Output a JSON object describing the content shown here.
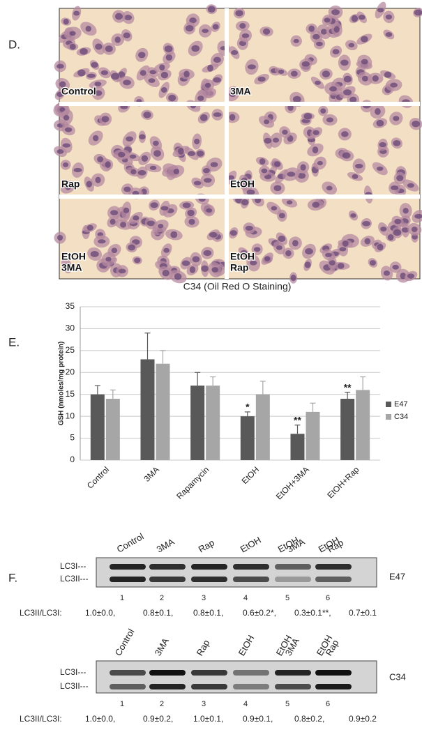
{
  "panel_d": {
    "label": "D.",
    "cells": [
      {
        "label": [
          "Control"
        ]
      },
      {
        "label": [
          "3MA"
        ]
      },
      {
        "label": [
          "Rap"
        ]
      },
      {
        "label": [
          "EtOH"
        ]
      },
      {
        "label": [
          "EtOH",
          "3MA"
        ]
      },
      {
        "label": [
          "EtOH",
          "Rap"
        ]
      }
    ],
    "caption": "C34 (Oil Red O Staining)"
  },
  "chart_data": {
    "type": "bar",
    "panel_label": "E.",
    "ylabel": "GSH (nmoles/mg protein)",
    "categories": [
      "Control",
      "3MA",
      "Rapamycin",
      "EtOH",
      "EtOH+3MA",
      "EtOH+Rap"
    ],
    "series": [
      {
        "name": "E47",
        "color": "#595959",
        "values": [
          15,
          23,
          17,
          10,
          6,
          14
        ],
        "errors": [
          2,
          6,
          3,
          1,
          2,
          1.5
        ]
      },
      {
        "name": "C34",
        "color": "#a6a6a6",
        "values": [
          14,
          22,
          17,
          15,
          11,
          16
        ],
        "errors": [
          2,
          3,
          2,
          3,
          2,
          3
        ]
      }
    ],
    "annotations": [
      {
        "series": "E47",
        "category": "EtOH",
        "text": "*"
      },
      {
        "series": "E47",
        "category": "EtOH+3MA",
        "text": "**"
      },
      {
        "series": "E47",
        "category": "EtOH+Rap",
        "text": "**"
      }
    ],
    "ylim": [
      0,
      35
    ],
    "yticks": [
      0,
      5,
      10,
      15,
      20,
      25,
      30,
      35
    ],
    "grid": true,
    "legend": "right"
  },
  "panel_f": {
    "label": "F.",
    "blots": [
      {
        "name": "E47",
        "lanes": [
          [
            "Control"
          ],
          [
            "3MA"
          ],
          [
            "Rap"
          ],
          [
            "EtOH"
          ],
          [
            "EtOH",
            "3MA"
          ],
          [
            "EtOH",
            "Rap"
          ]
        ],
        "bands": [
          "LC3I---",
          "LC3II---"
        ],
        "lane_numbers": [
          "1",
          "2",
          "3",
          "4",
          "5",
          "6"
        ],
        "ratio_label": "LC3II/LC3I:",
        "ratios": [
          "1.0±0.0,",
          "0.8±0.1,",
          "0.8±0.1,",
          "0.6±0.2*,",
          "0.3±0.1**,",
          "0.7±0.1"
        ]
      },
      {
        "name": "C34",
        "lanes": [
          [
            "Control"
          ],
          [
            "3MA"
          ],
          [
            "Rap"
          ],
          [
            "EtOH"
          ],
          [
            "EtOH",
            "3MA"
          ],
          [
            "EtOH",
            "Rap"
          ]
        ],
        "bands": [
          "LC3I---",
          "LC3II---"
        ],
        "lane_numbers": [
          "1",
          "2",
          "3",
          "4",
          "5",
          "6"
        ],
        "ratio_label": "LC3II/LC3I:",
        "ratios": [
          "1.0±0.0,",
          "0.9±0.2,",
          "1.0±0.1,",
          "0.9±0.1,",
          "0.8±0.2,",
          "0.9±0.2"
        ]
      }
    ]
  }
}
